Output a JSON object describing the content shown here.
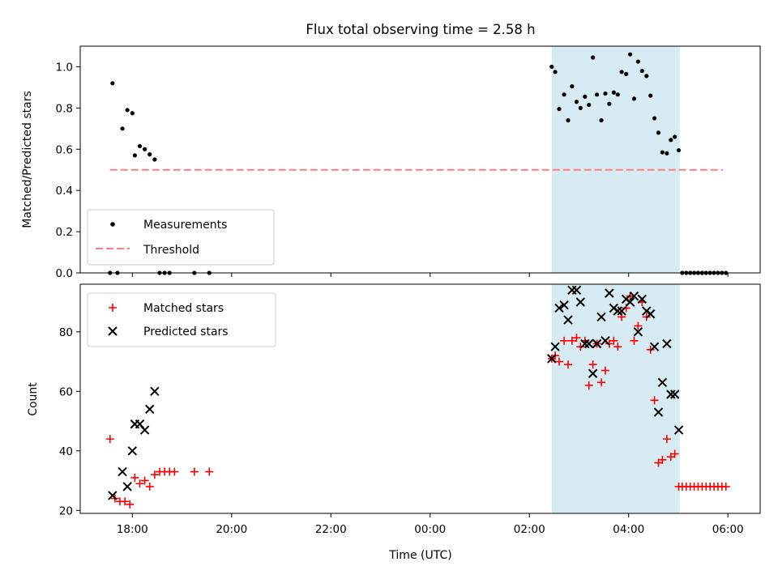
{
  "chart_data": {
    "type": "scatter",
    "title": "Flux total observing time = 2.58 h",
    "xlabel": "Time (UTC)",
    "x_range_hours": [
      -7.05,
      6.65
    ],
    "x_ticks": [
      {
        "h": -6,
        "label": "18:00"
      },
      {
        "h": -4,
        "label": "20:00"
      },
      {
        "h": -2,
        "label": "22:00"
      },
      {
        "h": 0,
        "label": "00:00"
      },
      {
        "h": 2,
        "label": "02:00"
      },
      {
        "h": 4,
        "label": "04:00"
      },
      {
        "h": 6,
        "label": "06:00"
      }
    ],
    "shaded_span_hours": [
      2.45,
      5.03
    ],
    "shade_color": "#add8e6",
    "top_panel": {
      "ylabel": "Matched/Predicted stars",
      "ylim": [
        0,
        1.1
      ],
      "yticks": [
        "0.0",
        "0.2",
        "0.4",
        "0.6",
        "0.8",
        "1.0"
      ],
      "threshold": {
        "name": "Threshold",
        "value": 0.5,
        "x_range_hours": [
          -6.45,
          5.9
        ],
        "color": "#ff7f7f"
      },
      "measurements": {
        "name": "Measurements",
        "color": "#000000",
        "points": [
          [
            -6.4,
            0.92
          ],
          [
            -6.2,
            0.7
          ],
          [
            -6.1,
            0.79
          ],
          [
            -6.0,
            0.775
          ],
          [
            -5.95,
            0.57
          ],
          [
            -5.85,
            0.615
          ],
          [
            -5.75,
            0.6
          ],
          [
            -5.65,
            0.575
          ],
          [
            -5.55,
            0.55
          ],
          [
            -6.45,
            0.0
          ],
          [
            -6.3,
            0.0
          ],
          [
            -5.45,
            0.0
          ],
          [
            -5.35,
            0.0
          ],
          [
            -5.25,
            0.0
          ],
          [
            -4.75,
            0.0
          ],
          [
            -4.45,
            0.0
          ],
          [
            2.45,
            1.0
          ],
          [
            2.52,
            0.975
          ],
          [
            2.6,
            0.795
          ],
          [
            2.7,
            0.865
          ],
          [
            2.78,
            0.74
          ],
          [
            2.86,
            0.905
          ],
          [
            2.95,
            0.83
          ],
          [
            3.03,
            0.8
          ],
          [
            3.12,
            0.855
          ],
          [
            3.2,
            0.815
          ],
          [
            3.28,
            1.045
          ],
          [
            3.36,
            0.865
          ],
          [
            3.45,
            0.74
          ],
          [
            3.53,
            0.87
          ],
          [
            3.61,
            0.82
          ],
          [
            3.7,
            0.875
          ],
          [
            3.78,
            0.865
          ],
          [
            3.86,
            0.975
          ],
          [
            3.95,
            0.965
          ],
          [
            4.03,
            1.06
          ],
          [
            4.11,
            0.845
          ],
          [
            4.19,
            1.025
          ],
          [
            4.27,
            0.98
          ],
          [
            4.36,
            0.955
          ],
          [
            4.44,
            0.86
          ],
          [
            4.52,
            0.75
          ],
          [
            4.6,
            0.68
          ],
          [
            4.68,
            0.585
          ],
          [
            4.77,
            0.58
          ],
          [
            4.85,
            0.645
          ],
          [
            4.93,
            0.66
          ],
          [
            5.01,
            0.595
          ],
          [
            5.08,
            0.0
          ],
          [
            5.16,
            0.0
          ],
          [
            5.24,
            0.0
          ],
          [
            5.32,
            0.0
          ],
          [
            5.4,
            0.0
          ],
          [
            5.48,
            0.0
          ],
          [
            5.56,
            0.0
          ],
          [
            5.64,
            0.0
          ],
          [
            5.72,
            0.0
          ],
          [
            5.8,
            0.0
          ],
          [
            5.88,
            0.0
          ],
          [
            5.96,
            0.0
          ]
        ]
      },
      "legend": "lower left"
    },
    "bottom_panel": {
      "ylabel": "Count",
      "ylim": [
        19,
        96
      ],
      "yticks": [
        "20",
        "40",
        "60",
        "80"
      ],
      "matched": {
        "name": "Matched stars",
        "color": "#ff0000",
        "points": [
          [
            -6.45,
            44
          ],
          [
            -6.35,
            24
          ],
          [
            -6.25,
            23
          ],
          [
            -6.15,
            23
          ],
          [
            -6.05,
            22
          ],
          [
            -5.95,
            31
          ],
          [
            -5.85,
            29
          ],
          [
            -5.75,
            30
          ],
          [
            -5.65,
            28
          ],
          [
            -5.55,
            32
          ],
          [
            -5.45,
            33
          ],
          [
            -5.35,
            33
          ],
          [
            -5.25,
            33
          ],
          [
            -5.15,
            33
          ],
          [
            -4.75,
            33
          ],
          [
            -4.45,
            33
          ],
          [
            2.45,
            71
          ],
          [
            2.52,
            72
          ],
          [
            2.6,
            70
          ],
          [
            2.7,
            77
          ],
          [
            2.78,
            69
          ],
          [
            2.86,
            77
          ],
          [
            2.95,
            78
          ],
          [
            3.03,
            75
          ],
          [
            3.12,
            77
          ],
          [
            3.2,
            62
          ],
          [
            3.28,
            69
          ],
          [
            3.36,
            76
          ],
          [
            3.45,
            63
          ],
          [
            3.53,
            67
          ],
          [
            3.61,
            76
          ],
          [
            3.7,
            77
          ],
          [
            3.78,
            75
          ],
          [
            3.86,
            85
          ],
          [
            3.95,
            88
          ],
          [
            4.03,
            92
          ],
          [
            4.11,
            77
          ],
          [
            4.19,
            82
          ],
          [
            4.27,
            90
          ],
          [
            4.36,
            85
          ],
          [
            4.44,
            74
          ],
          [
            4.52,
            57
          ],
          [
            4.6,
            36
          ],
          [
            4.68,
            37
          ],
          [
            4.77,
            44
          ],
          [
            4.85,
            38
          ],
          [
            4.93,
            39
          ],
          [
            5.01,
            28
          ],
          [
            5.08,
            28
          ],
          [
            5.16,
            28
          ],
          [
            5.24,
            28
          ],
          [
            5.32,
            28
          ],
          [
            5.4,
            28
          ],
          [
            5.48,
            28
          ],
          [
            5.56,
            28
          ],
          [
            5.64,
            28
          ],
          [
            5.72,
            28
          ],
          [
            5.8,
            28
          ],
          [
            5.88,
            28
          ],
          [
            5.96,
            28
          ]
        ]
      },
      "predicted": {
        "name": "Predicted stars",
        "color": "#000000",
        "points": [
          [
            -6.4,
            25
          ],
          [
            -6.2,
            33
          ],
          [
            -6.1,
            28
          ],
          [
            -6.0,
            40
          ],
          [
            -5.95,
            49
          ],
          [
            -5.85,
            49
          ],
          [
            -5.75,
            47
          ],
          [
            -5.65,
            54
          ],
          [
            -5.55,
            60
          ],
          [
            2.45,
            71
          ],
          [
            2.52,
            75
          ],
          [
            2.6,
            88
          ],
          [
            2.7,
            89
          ],
          [
            2.78,
            84
          ],
          [
            2.86,
            94
          ],
          [
            2.95,
            94
          ],
          [
            3.03,
            90
          ],
          [
            3.12,
            76
          ],
          [
            3.2,
            76
          ],
          [
            3.28,
            66
          ],
          [
            3.36,
            76
          ],
          [
            3.45,
            85
          ],
          [
            3.53,
            77
          ],
          [
            3.61,
            93
          ],
          [
            3.7,
            88
          ],
          [
            3.78,
            87
          ],
          [
            3.86,
            87
          ],
          [
            3.95,
            91
          ],
          [
            4.03,
            90
          ],
          [
            4.11,
            92
          ],
          [
            4.19,
            80
          ],
          [
            4.27,
            91
          ],
          [
            4.36,
            87
          ],
          [
            4.44,
            86
          ],
          [
            4.52,
            75
          ],
          [
            4.6,
            53
          ],
          [
            4.68,
            63
          ],
          [
            4.77,
            76
          ],
          [
            4.85,
            59
          ],
          [
            4.93,
            59
          ],
          [
            5.01,
            47
          ]
        ]
      },
      "legend": "upper left"
    }
  }
}
